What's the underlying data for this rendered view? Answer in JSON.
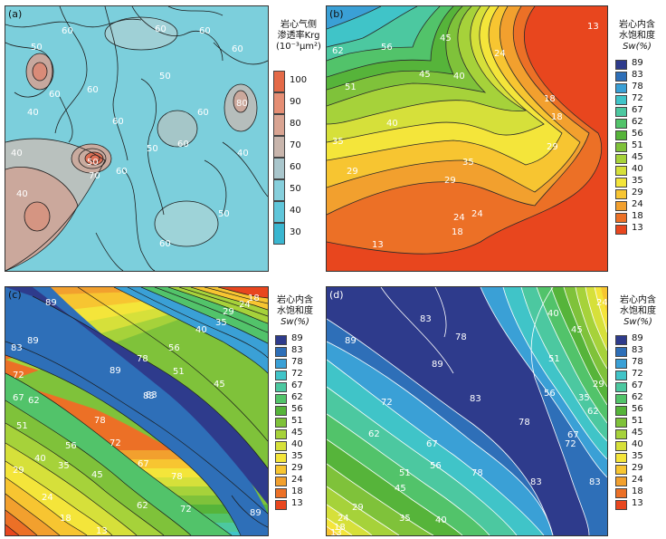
{
  "chart_data": [
    {
      "type": "heatmap",
      "panel_label": "(a)",
      "legend_title_lines": [
        "岩心气侧",
        "渗透率Krg",
        "(10⁻³μm²)"
      ],
      "legend_ticks": [
        100,
        90,
        80,
        70,
        60,
        50,
        40,
        30
      ],
      "legend_colors": [
        "#e46a48",
        "#e58e74",
        "#d9a492",
        "#c8b5ac",
        "#a9c6cc",
        "#86cfdc",
        "#60c6da",
        "#3ab6d0"
      ],
      "contour_labels": [
        "60",
        "60",
        "60",
        "50",
        "60",
        "50",
        "60",
        "40",
        "40",
        "50",
        "70",
        "60",
        "40",
        "50",
        "60",
        "40",
        "50",
        "60",
        "80",
        "60",
        "60",
        "60"
      ]
    },
    {
      "type": "heatmap",
      "panel_label": "(b)",
      "legend_title_lines": [
        "岩心内含",
        "水饱和度",
        "Sw(%)"
      ],
      "legend_ticks": [
        89,
        83,
        78,
        72,
        67,
        62,
        56,
        51,
        45,
        40,
        35,
        29,
        24,
        18,
        13
      ],
      "legend_colors": [
        "#2e3b8c",
        "#2e6fb8",
        "#3aa0d6",
        "#40c4c8",
        "#4cc8a0",
        "#52c36a",
        "#56b43a",
        "#7fc23a",
        "#a6d23a",
        "#d6e03a",
        "#f4e53a",
        "#f7c531",
        "#f2a02e",
        "#ec7026",
        "#e8461e"
      ],
      "contour_labels": [
        "62",
        "56",
        "51",
        "45",
        "40",
        "35",
        "29",
        "24",
        "18",
        "13",
        "45",
        "40",
        "35",
        "29",
        "24",
        "18",
        "13",
        "29",
        "24",
        "18"
      ]
    },
    {
      "type": "heatmap",
      "panel_label": "(c)",
      "legend_title_lines": [
        "岩心内含",
        "水饱和度",
        "Sw(%)"
      ],
      "legend_ticks": [
        89,
        83,
        78,
        72,
        67,
        62,
        56,
        51,
        45,
        40,
        35,
        29,
        24,
        18,
        13
      ],
      "legend_colors": [
        "#2e3b8c",
        "#2e6fb8",
        "#3aa0d6",
        "#40c4c8",
        "#4cc8a0",
        "#52c36a",
        "#56b43a",
        "#7fc23a",
        "#a6d23a",
        "#d6e03a",
        "#f4e53a",
        "#f7c531",
        "#f2a02e",
        "#ec7026",
        "#e8461e"
      ],
      "contour_labels": [
        "89",
        "83",
        "89",
        "72",
        "78",
        "83",
        "89",
        "78",
        "72",
        "67",
        "62",
        "56",
        "51",
        "45",
        "40",
        "35",
        "29",
        "24",
        "18",
        "13",
        "83",
        "78",
        "72",
        "67",
        "62",
        "56",
        "51",
        "45",
        "40",
        "35",
        "29",
        "24",
        "18",
        "89"
      ]
    },
    {
      "type": "heatmap",
      "panel_label": "(d)",
      "legend_title_lines": [
        "岩心内含",
        "水饱和度",
        "Sw(%)"
      ],
      "legend_ticks": [
        89,
        83,
        78,
        72,
        67,
        62,
        56,
        51,
        45,
        40,
        35,
        29,
        24,
        18,
        13
      ],
      "legend_colors": [
        "#2e3b8c",
        "#2e6fb8",
        "#3aa0d6",
        "#40c4c8",
        "#4cc8a0",
        "#52c36a",
        "#56b43a",
        "#7fc23a",
        "#a6d23a",
        "#d6e03a",
        "#f4e53a",
        "#f7c531",
        "#f2a02e",
        "#ec7026",
        "#e8461e"
      ],
      "contour_labels": [
        "89",
        "83",
        "78",
        "89",
        "83",
        "72",
        "67",
        "62",
        "56",
        "51",
        "45",
        "40",
        "35",
        "29",
        "24",
        "18",
        "13",
        "83",
        "78",
        "72",
        "67",
        "62",
        "56",
        "51",
        "45",
        "40",
        "35",
        "29",
        "24",
        "78",
        "83"
      ]
    }
  ]
}
